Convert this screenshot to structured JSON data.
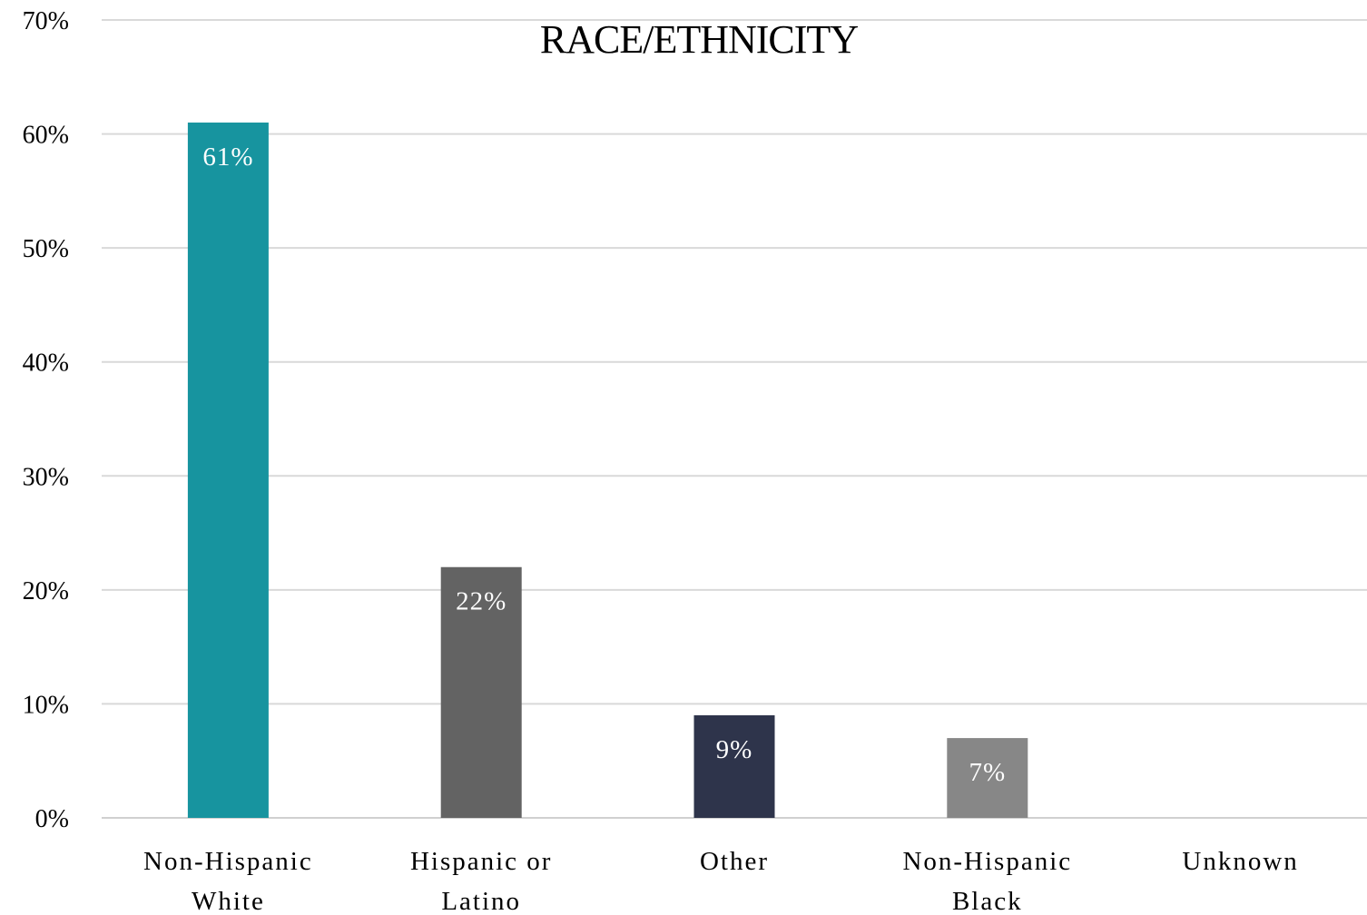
{
  "chart_data": {
    "type": "bar",
    "title": "RACE/ETHNICITY",
    "xlabel": "",
    "ylabel": "",
    "categories": [
      [
        "Non-Hispanic",
        "White"
      ],
      [
        "Hispanic or",
        "Latino"
      ],
      [
        "Other"
      ],
      [
        "Non-Hispanic",
        "Black"
      ],
      [
        "Unknown"
      ]
    ],
    "values": [
      61,
      22,
      9,
      7,
      0
    ],
    "data_labels": [
      "61%",
      "22%",
      "9%",
      "7%",
      ""
    ],
    "bar_colors": [
      "#17949f",
      "#636363",
      "#2e344b",
      "#878787",
      "#878787"
    ],
    "ylim": [
      0,
      70
    ],
    "y_ticks": [
      0,
      10,
      20,
      30,
      40,
      50,
      60,
      70
    ],
    "y_tick_labels": [
      "0%",
      "10%",
      "20%",
      "30%",
      "40%",
      "50%",
      "60%",
      "70%"
    ],
    "grid": true,
    "legend": "none"
  }
}
